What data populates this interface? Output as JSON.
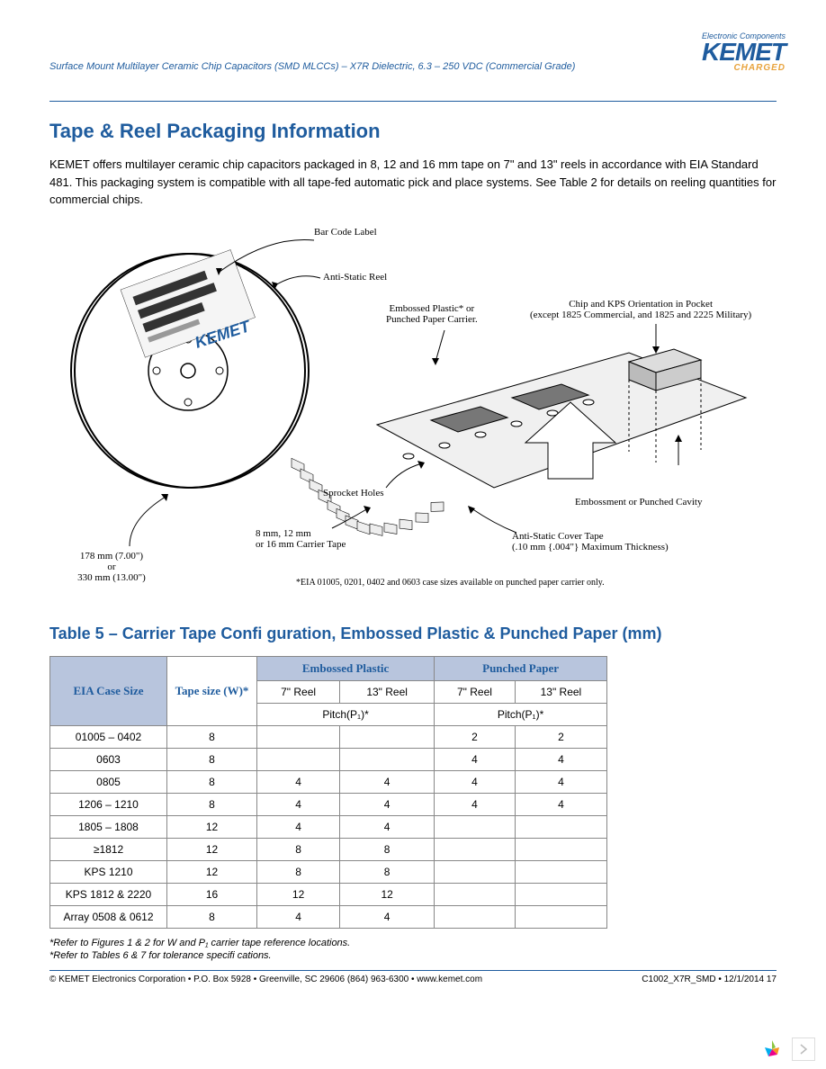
{
  "header": {
    "doc_title": "Surface Mount Multilayer Ceramic Chip Capacitors (SMD MLCCs) – X7R Dielectric, 6.3 – 250 VDC (Commercial Grade)",
    "logo_tagline": "Electronic Components",
    "logo_text": "KEMET",
    "logo_sub": "CHARGED"
  },
  "section": {
    "title": "Tape & Reel Packaging Information",
    "paragraph": "KEMET offers multilayer ceramic chip capacitors packaged in 8, 12 and 16 mm tape on 7\" and 13\" reels in accordance with EIA Standard 481. This packaging system is compatible with all tape-fed automatic pick and place systems. See Table 2 for details on reeling quantities for commercial chips."
  },
  "diagram": {
    "bar_code_label": "Bar Code Label",
    "anti_static_reel": "Anti-Static Reel",
    "embossed_plastic": "Embossed Plastic* or",
    "embossed_plastic2": "Punched Paper Carrier.",
    "chip_orientation": "Chip and KPS Orientation in Pocket",
    "chip_orientation2": "(except 1825 Commercial, and 1825 and 2225 Military)",
    "sprocket_holes": "Sprocket Holes",
    "embossment": "Embossment or Punched Cavity",
    "carrier_tape": "8 mm, 12 mm",
    "carrier_tape2": "or 16 mm Carrier Tape",
    "anti_static_cover": "Anti-Static Cover Tape",
    "anti_static_cover2": "(.10 mm {.004\"} Maximum Thickness)",
    "reel_size": "178 mm (7.00\")",
    "reel_size_or": "or",
    "reel_size2": "330 mm (13.00\")",
    "eia_note": "*EIA 01005, 0201, 0402 and 0603 case sizes available on punched paper carrier only.",
    "logo_watermark": "KEMET"
  },
  "table": {
    "title": "Table 5 – Carrier Tape Confi guration, Embossed Plastic & Punched Paper (mm)",
    "col1": "EIA Case Size",
    "col2": "Tape size (W)*",
    "group1": "Embossed Plastic",
    "group2": "Punched Paper",
    "sub_7reel": "7\" Reel",
    "sub_13reel": "13\" Reel",
    "pitch": "Pitch(P₁)*",
    "rows": [
      {
        "case": "01005 – 0402",
        "tape": "8",
        "e7": "",
        "e13": "",
        "p7": "2",
        "p13": "2"
      },
      {
        "case": "0603",
        "tape": "8",
        "e7": "",
        "e13": "",
        "p7": "4",
        "p13": "4"
      },
      {
        "case": "0805",
        "tape": "8",
        "e7": "4",
        "e13": "4",
        "p7": "4",
        "p13": "4"
      },
      {
        "case": "1206 – 1210",
        "tape": "8",
        "e7": "4",
        "e13": "4",
        "p7": "4",
        "p13": "4"
      },
      {
        "case": "1805 – 1808",
        "tape": "12",
        "e7": "4",
        "e13": "4",
        "p7": "",
        "p13": ""
      },
      {
        "case": "≥1812",
        "tape": "12",
        "e7": "8",
        "e13": "8",
        "p7": "",
        "p13": ""
      },
      {
        "case": "KPS 1210",
        "tape": "12",
        "e7": "8",
        "e13": "8",
        "p7": "",
        "p13": ""
      },
      {
        "case": "KPS 1812 & 2220",
        "tape": "16",
        "e7": "12",
        "e13": "12",
        "p7": "",
        "p13": ""
      },
      {
        "case": "Array 0508 & 0612",
        "tape": "8",
        "e7": "4",
        "e13": "4",
        "p7": "",
        "p13": ""
      }
    ],
    "footnote1": "*Refer to Figures 1 & 2 for W and P₁ carrier tape reference locations.",
    "footnote2": "*Refer to Tables 6 & 7 for tolerance specifi cations."
  },
  "footer": {
    "left": "© KEMET Electronics Corporation • P.O. Box 5928 • Greenville, SC 29606 (864) 963-6300 • www.kemet.com",
    "right": "C1002_X7R_SMD • 12/1/2014  17"
  },
  "colors": {
    "blue": "#1f5c9e",
    "orange": "#e8a33d",
    "table_header": "#b8c5dd"
  }
}
